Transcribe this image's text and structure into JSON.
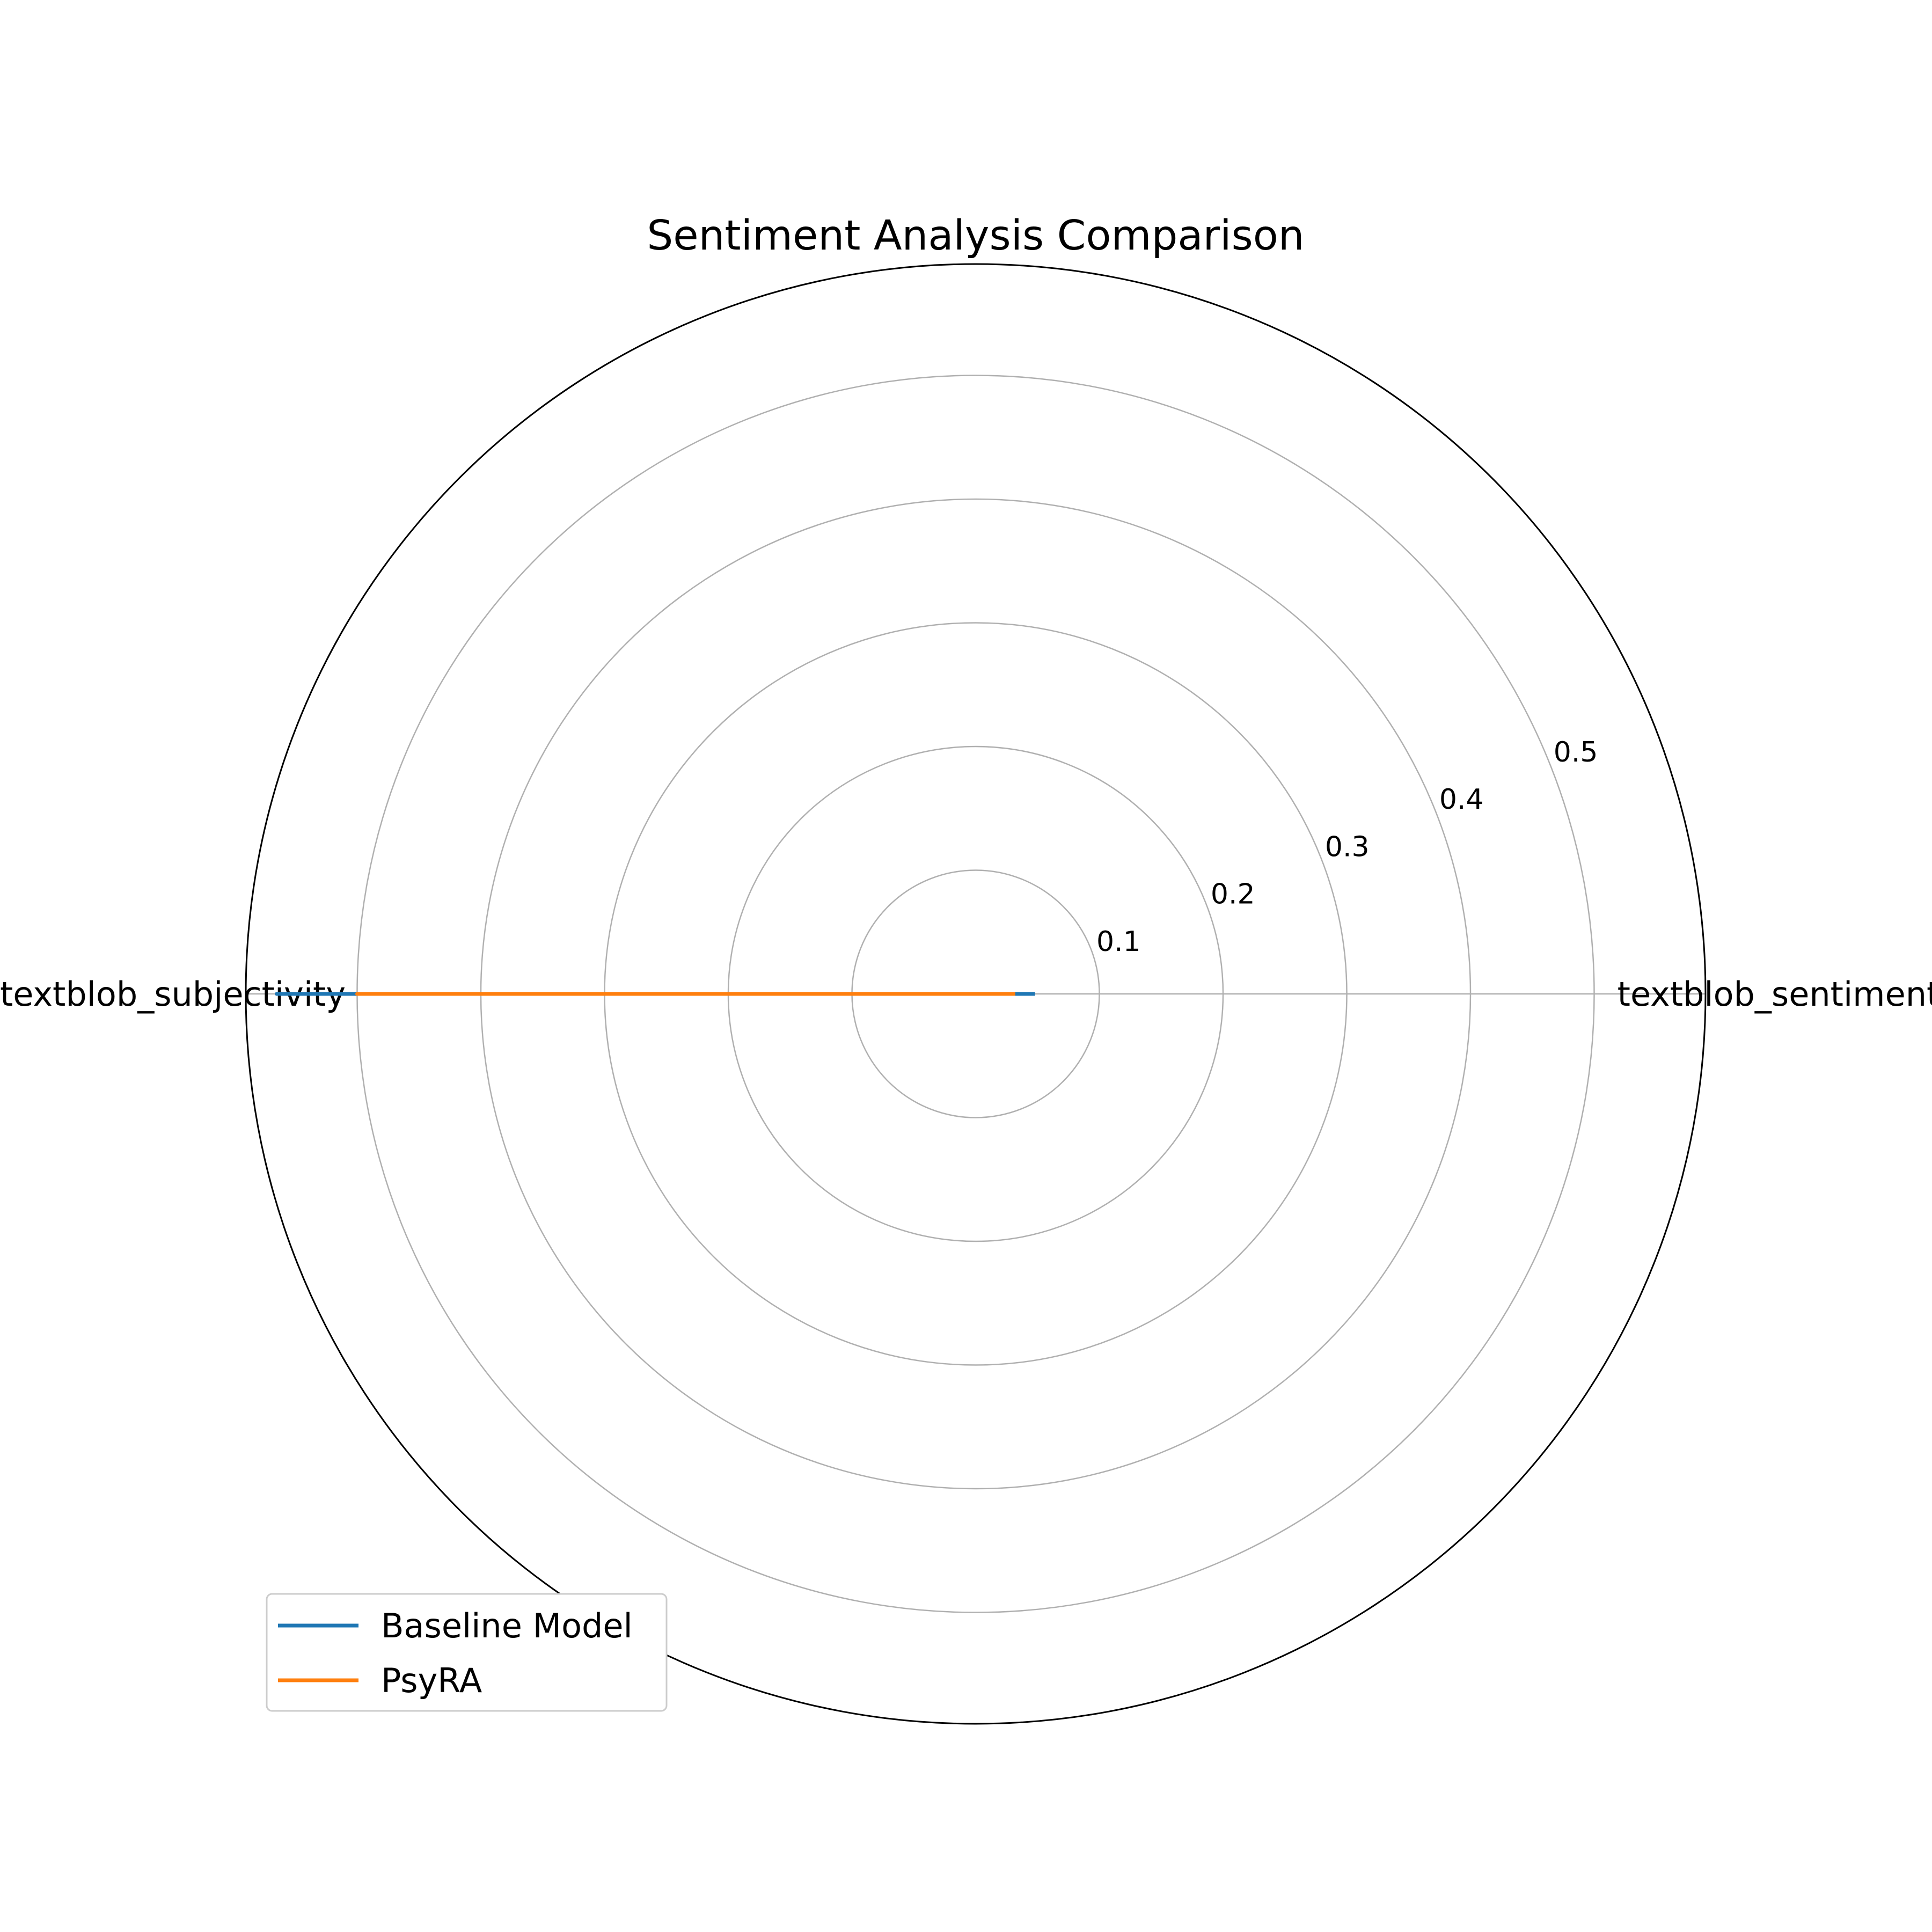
{
  "chart_data": {
    "type": "radar",
    "title": "Sentiment Analysis Comparison",
    "axes": [
      "textblob_sentiment",
      "textblob_subjectivity"
    ],
    "radial_ticks": [
      0.1,
      0.2,
      0.3,
      0.4,
      0.5
    ],
    "radial_tick_labels": [
      "0.1",
      "0.2",
      "0.3",
      "0.4",
      "0.5"
    ],
    "rlim": [
      0,
      0.59
    ],
    "grid": true,
    "legend_position": "lower-left",
    "series": [
      {
        "name": "Baseline Model",
        "color": "#1f77b4",
        "values": [
          0.048,
          0.565
        ]
      },
      {
        "name": "PsyRA",
        "color": "#ff7f0e",
        "values": [
          0.032,
          0.5
        ]
      }
    ]
  }
}
